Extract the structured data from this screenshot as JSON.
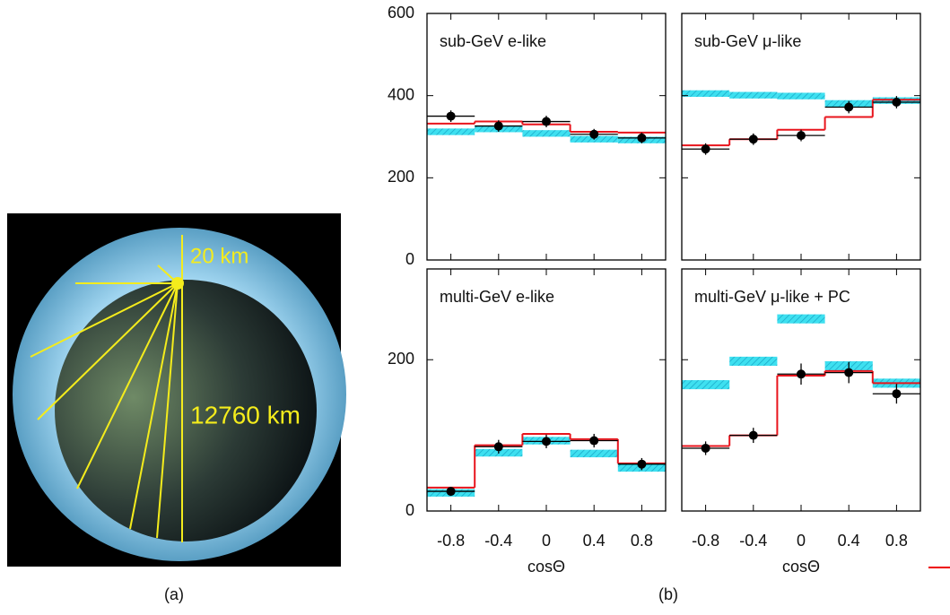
{
  "figure": {
    "earth_labels": [
      "20 km",
      "12760 km"
    ],
    "captions": [
      "(a)",
      "(b)"
    ]
  },
  "chart_data": [
    {
      "type": "histogram",
      "title": "sub-GeV e-like",
      "bins": [
        -1,
        -0.6,
        -0.2,
        0.2,
        0.6,
        1
      ],
      "x": [
        -0.8,
        -0.4,
        0,
        0.4,
        0.8
      ],
      "data_values": [
        350,
        326,
        337,
        306,
        297
      ],
      "data_errors": [
        14,
        14,
        14,
        13,
        13
      ],
      "osc_values": [
        332,
        337,
        330,
        312,
        310
      ],
      "noosc_values": [
        312,
        319,
        308,
        294,
        292
      ],
      "noosc_errors": [
        8,
        8,
        8,
        8,
        8
      ],
      "xlim": [
        -1,
        1
      ],
      "xticks": [
        -0.8,
        -0.4,
        0,
        0.4,
        0.8
      ],
      "ylim": [
        0,
        600
      ],
      "yticks": [
        0,
        200,
        400,
        600
      ],
      "show_xtick_labels": false,
      "show_ytick_labels": true
    },
    {
      "type": "histogram",
      "title": "sub-GeV μ-like",
      "bins": [
        -1,
        -0.6,
        -0.2,
        0.2,
        0.6,
        1
      ],
      "x": [
        -0.8,
        -0.4,
        0,
        0.4,
        0.8
      ],
      "data_values": [
        270,
        294,
        303,
        372,
        384
      ],
      "data_errors": [
        14,
        14,
        14,
        15,
        15
      ],
      "osc_values": [
        279,
        294,
        317,
        348,
        390
      ],
      "noosc_values": [
        405,
        401,
        399,
        381,
        388
      ],
      "noosc_errors": [
        8,
        8,
        8,
        8,
        8
      ],
      "xlim": [
        -1,
        1
      ],
      "xticks": [
        -0.8,
        -0.4,
        0,
        0.4,
        0.8
      ],
      "ylim": [
        0,
        600
      ],
      "yticks": [
        0,
        200,
        400,
        600
      ],
      "show_xtick_labels": false,
      "show_ytick_labels": false
    },
    {
      "type": "histogram",
      "title": "multi-GeV e-like",
      "bins": [
        -1,
        -0.6,
        -0.2,
        0.2,
        0.6,
        1
      ],
      "x": [
        -0.8,
        -0.4,
        0,
        0.4,
        0.8
      ],
      "data_values": [
        26,
        85,
        92,
        93,
        62
      ],
      "data_errors": [
        6,
        9,
        9,
        9,
        8
      ],
      "osc_values": [
        31,
        87,
        102,
        95,
        63
      ],
      "noosc_values": [
        24,
        77,
        93,
        76,
        57
      ],
      "noosc_errors": [
        5,
        5,
        5,
        5,
        5
      ],
      "xlim": [
        -1,
        1
      ],
      "xticks": [
        -0.8,
        -0.4,
        0,
        0.4,
        0.8
      ],
      "ylim": [
        0,
        320
      ],
      "yticks": [
        0,
        200
      ],
      "show_xtick_labels": true,
      "show_ytick_labels": true,
      "xlabel": "cosΘ"
    },
    {
      "type": "histogram",
      "title": "multi-GeV μ-like + PC",
      "bins": [
        -1,
        -0.6,
        -0.2,
        0.2,
        0.6,
        1
      ],
      "x": [
        -0.8,
        -0.4,
        0,
        0.4,
        0.8
      ],
      "data_values": [
        83,
        100,
        181,
        183,
        155
      ],
      "data_errors": [
        9,
        10,
        14,
        14,
        13
      ],
      "osc_values": [
        86,
        100,
        179,
        185,
        169
      ],
      "noosc_values": [
        167,
        198,
        254,
        192,
        169
      ],
      "noosc_errors": [
        6,
        6,
        6,
        6,
        6
      ],
      "xlim": [
        -1,
        1
      ],
      "xticks": [
        -0.8,
        -0.4,
        0,
        0.4,
        0.8
      ],
      "ylim": [
        0,
        320
      ],
      "yticks": [
        0,
        200
      ],
      "show_xtick_labels": true,
      "show_ytick_labels": false,
      "xlabel": "cosΘ"
    }
  ]
}
